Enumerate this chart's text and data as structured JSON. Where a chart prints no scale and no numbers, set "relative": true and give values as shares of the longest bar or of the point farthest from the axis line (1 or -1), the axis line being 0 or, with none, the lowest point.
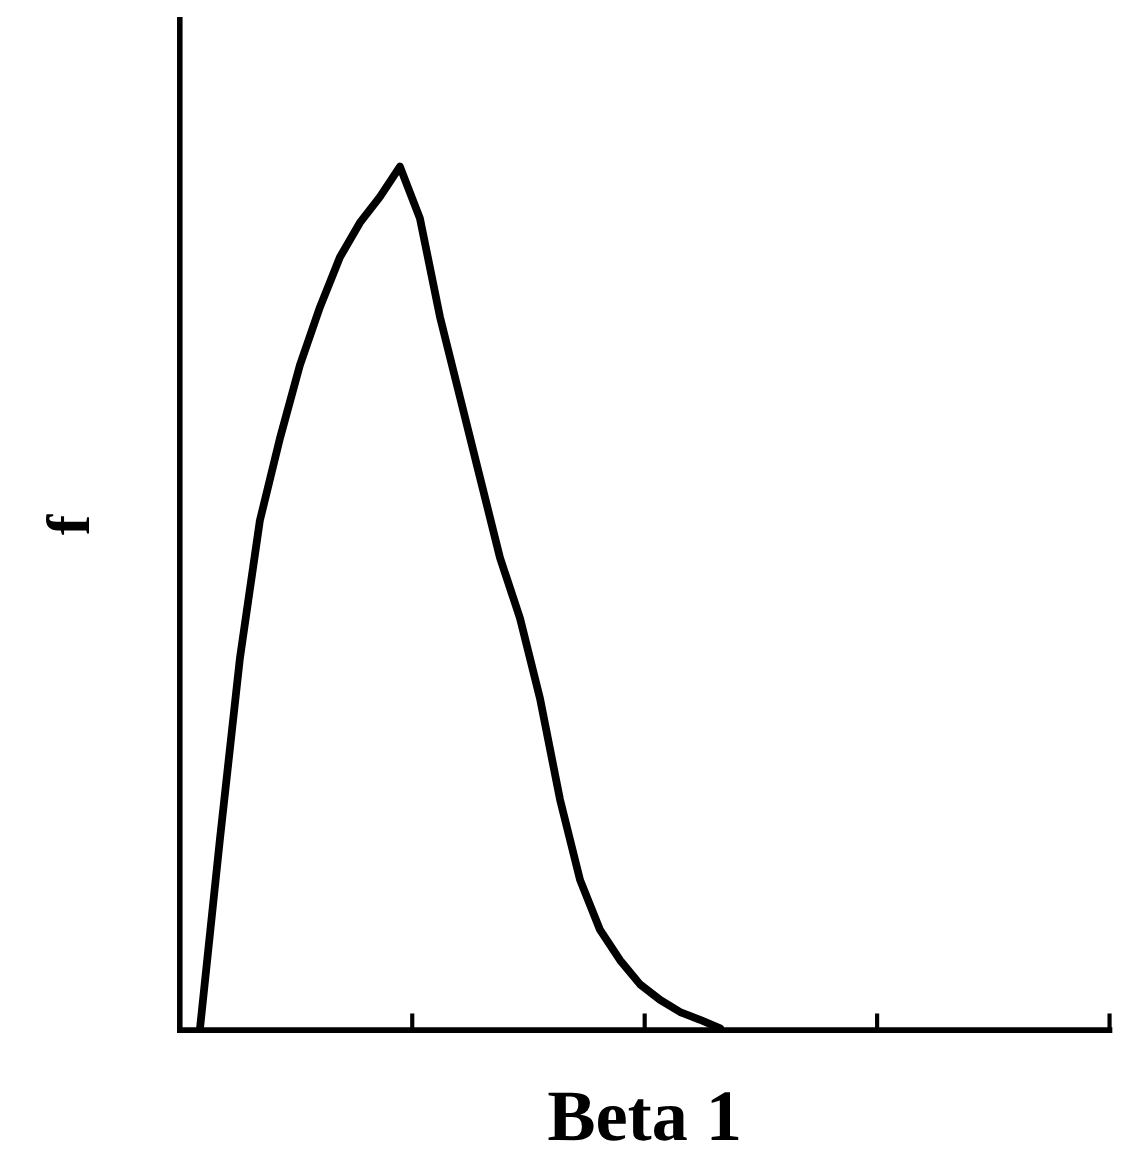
{
  "chart_data": {
    "type": "line",
    "relative": true,
    "xlabel": "Beta 1",
    "ylabel": "f",
    "marker": "none",
    "line_style": "solid",
    "grid": false,
    "legend": false,
    "tick_labels": false,
    "categories": [
      null,
      null,
      null,
      null,
      null,
      null,
      null,
      null,
      null,
      null,
      null,
      null,
      null,
      null,
      null,
      null,
      null,
      null,
      null,
      null,
      null,
      null,
      null,
      null,
      null,
      null,
      null,
      null,
      null,
      null,
      null,
      null,
      null,
      null,
      null,
      null,
      null,
      null,
      null,
      null,
      null,
      null,
      null,
      null,
      null,
      null,
      null
    ],
    "series": [
      {
        "color": "#000000",
        "values": [
          null,
          0,
          0.22,
          0.43,
          0.59,
          0.685,
          0.77,
          0.837,
          0.895,
          0.935,
          0.965,
          1,
          0.94,
          0.826,
          0.733,
          0.64,
          0.547,
          0.477,
          0.384,
          0.267,
          0.174,
          0.116,
          0.081,
          0.053,
          0.035,
          0.021,
          0.012,
          0.002,
          null,
          null,
          null,
          null,
          null,
          null,
          null,
          null,
          null,
          null,
          null,
          null,
          null,
          null,
          null,
          null,
          null,
          null,
          null
        ]
      }
    ]
  }
}
